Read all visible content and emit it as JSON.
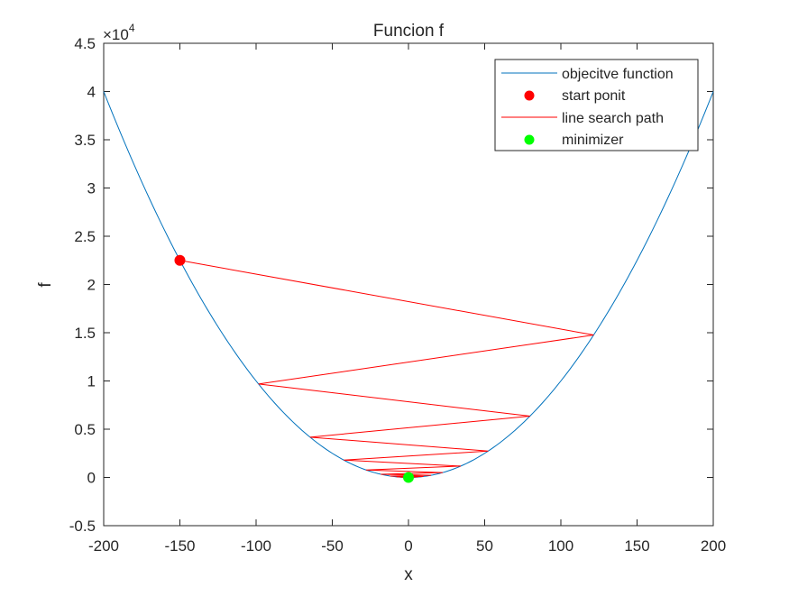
{
  "figure": {
    "title": "Funcion f",
    "xlabel": "x",
    "ylabel": "f",
    "y_exponent": {
      "base": "×10",
      "power": "4"
    },
    "x_ticks": [
      "-200",
      "-150",
      "-100",
      "-50",
      "0",
      "50",
      "100",
      "150",
      "200"
    ],
    "y_ticks": [
      "-0.5",
      "0",
      "0.5",
      "1",
      "1.5",
      "2",
      "2.5",
      "3",
      "3.5",
      "4",
      "4.5"
    ],
    "legend": [
      {
        "label": "objecitve function",
        "type": "line",
        "color": "#0072BD"
      },
      {
        "label": "start ponit",
        "type": "marker",
        "color": "#FF0000"
      },
      {
        "label": "line search path",
        "type": "line",
        "color": "#FF0000"
      },
      {
        "label": "minimizer",
        "type": "marker",
        "color": "#00FF00"
      }
    ],
    "colors": {
      "curve": "#0072BD",
      "path": "#FF0000",
      "start": "#FF0000",
      "minimizer": "#00FF00",
      "axes": "#262626"
    }
  },
  "chart_data": {
    "type": "line",
    "title": "Funcion f",
    "xlabel": "x",
    "ylabel": "f",
    "xlim": [
      -200,
      200
    ],
    "ylim": [
      -5000,
      45000
    ],
    "y_scale_factor": "x10^4",
    "grid": false,
    "legend_position": "northeast",
    "series": [
      {
        "name": "objecitve function",
        "type": "line",
        "function": "f(x) = x^2",
        "x": [
          -200,
          -150,
          -100,
          -50,
          0,
          50,
          100,
          150,
          200
        ],
        "values": [
          40000,
          22500,
          10000,
          2500,
          0,
          2500,
          10000,
          22500,
          40000
        ]
      },
      {
        "name": "start ponit",
        "type": "scatter",
        "x": [
          -150
        ],
        "values": [
          22500
        ]
      },
      {
        "name": "line search path",
        "type": "line",
        "x": [
          -150,
          121.5,
          -98.4,
          79.7,
          -64.6,
          52.3,
          -42.4,
          34.3,
          -27.8,
          22.5,
          -18.2,
          14.8,
          -12.0,
          9.7,
          -7.8,
          6.4,
          -5.2,
          4.2,
          -3.4,
          2.7,
          -2.2
        ],
        "values": [
          22500,
          14762,
          9683,
          6352,
          4173,
          2735,
          1798,
          1176,
          773,
          506,
          331,
          219,
          144,
          94,
          61,
          41,
          27,
          18,
          12,
          7,
          5
        ]
      },
      {
        "name": "minimizer",
        "type": "scatter",
        "x": [
          0
        ],
        "values": [
          0
        ]
      }
    ]
  }
}
